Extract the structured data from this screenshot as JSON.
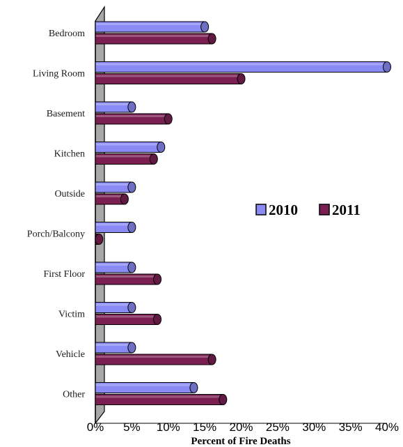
{
  "chart_data": {
    "type": "bar",
    "orientation": "horizontal",
    "style": "3d-cylinder",
    "categories": [
      "Bedroom",
      "Living Room",
      "Basement",
      "Kitchen",
      "Outside",
      "Porch/Balcony",
      "First Floor",
      "Victim",
      "Vehicle",
      "Other"
    ],
    "series": [
      {
        "name": "2010",
        "color": "#8a8af5",
        "values": [
          15,
          40,
          5,
          9,
          5,
          5,
          5,
          5,
          5,
          13.5
        ]
      },
      {
        "name": "2011",
        "color": "#7b1f52",
        "values": [
          16,
          20,
          10,
          8,
          4,
          0.5,
          8.5,
          8.5,
          16,
          17.5
        ]
      }
    ],
    "xlabel": "Percent of Fire Deaths",
    "ylabel": "",
    "xlim": [
      0,
      40
    ],
    "xticks": [
      "0%",
      "5%",
      "10%",
      "15%",
      "20%",
      "25%",
      "30%",
      "35%",
      "40%"
    ],
    "grid": false,
    "legend": {
      "position": "right-middle",
      "entries": [
        "2010",
        "2011"
      ]
    }
  }
}
